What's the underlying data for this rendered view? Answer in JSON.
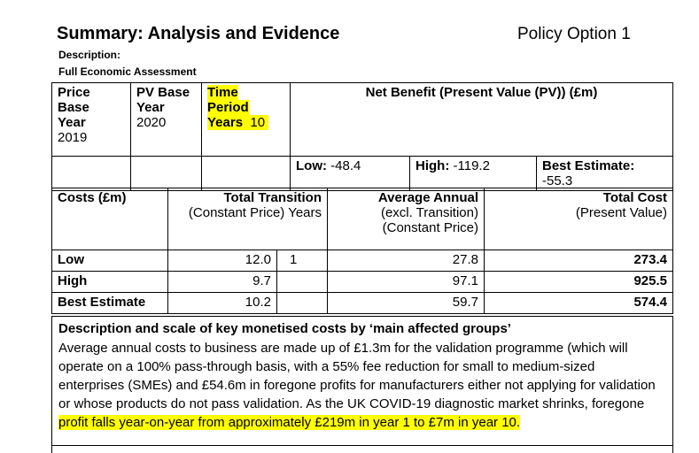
{
  "header": {
    "title": "Summary: Analysis and Evidence",
    "policy_option": "Policy Option 1",
    "description_label": "Description:",
    "assessment_label": "Full Economic Assessment"
  },
  "top_table": {
    "price_base_year_label_1": "Price",
    "price_base_year_label_2": "Base",
    "price_base_year_label_3": "Year",
    "price_base_year_value": "2019",
    "pv_base_year_label_1": "PV Base",
    "pv_base_year_label_2": "Year",
    "pv_base_year_value": "2020",
    "time_period_label_1": "Time",
    "time_period_label_2": "Period",
    "time_period_label_3": "Years",
    "time_period_value": "10",
    "net_benefit_header": "Net Benefit (Present Value (PV)) (£m)",
    "low_label": "Low:",
    "low_value": "-48.4",
    "high_label": "High:",
    "high_value": "-119.2",
    "best_label": "Best Estimate:",
    "best_value": "-55.3"
  },
  "costs_table": {
    "col_costs": "Costs (£m)",
    "col_transition_1": "Total Transition",
    "col_transition_2": "(Constant Price)  Years",
    "col_annual_1": "Average Annual",
    "col_annual_2": "(excl. Transition)",
    "col_annual_3": "(Constant Price)",
    "col_total_1": "Total Cost",
    "col_total_2": "(Present Value)",
    "rows": [
      {
        "label": "Low",
        "transition": "12.0",
        "years": "1",
        "annual": "27.8",
        "total": "273.4"
      },
      {
        "label": "High",
        "transition": "9.7",
        "years": "",
        "annual": "97.1",
        "total": "925.5"
      },
      {
        "label": "Best Estimate",
        "transition": "10.2",
        "years": "",
        "annual": "59.7",
        "total": "574.4"
      }
    ]
  },
  "description": {
    "heading": "Description and scale of key monetised costs by ‘main affected groups’",
    "line1": "Average annual costs to business are made up of £1.3m for the validation programme (which will",
    "line2": "operate on a 100% pass-through basis, with a 55% fee reduction for small to medium-sized",
    "line3": "enterprises (SMEs) and £54.6m in foregone profits for manufacturers either not applying for validation",
    "line4": "or whose products do not pass validation. As the UK COVID-19 diagnostic market shrinks, foregone",
    "line5_highlighted": "profit falls year-on-year from approximately £219m in year 1 to £7m in year 10."
  },
  "colors": {
    "highlight": "#ffff00",
    "text": "#000000"
  }
}
